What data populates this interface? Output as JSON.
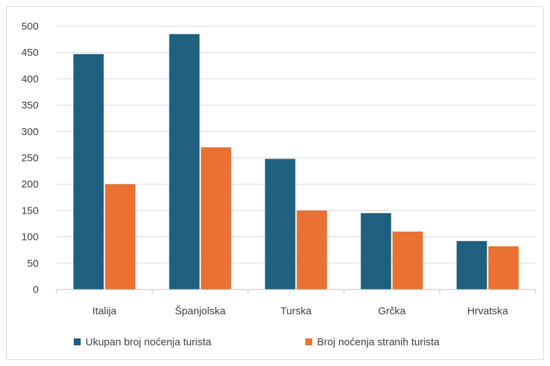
{
  "chart_data": {
    "type": "bar",
    "categories": [
      "Italija",
      "Španjolska",
      "Turska",
      "Grčka",
      "Hrvatska"
    ],
    "series": [
      {
        "name": "Ukupan broj noćenja turista",
        "color": "#1f5f7f",
        "values": [
          447,
          485,
          248,
          145,
          92
        ]
      },
      {
        "name": "Broj noćenja stranih turista",
        "color": "#e97132",
        "values": [
          200,
          270,
          150,
          110,
          82
        ]
      }
    ],
    "y_ticks": [
      0,
      50,
      100,
      150,
      200,
      250,
      300,
      350,
      400,
      450,
      500
    ],
    "ylim": [
      0,
      500
    ],
    "grid": true,
    "legend_position": "bottom",
    "gridline_color": "#d9d9d9",
    "axis_color": "#bfbfbf",
    "text_color": "#404040"
  }
}
